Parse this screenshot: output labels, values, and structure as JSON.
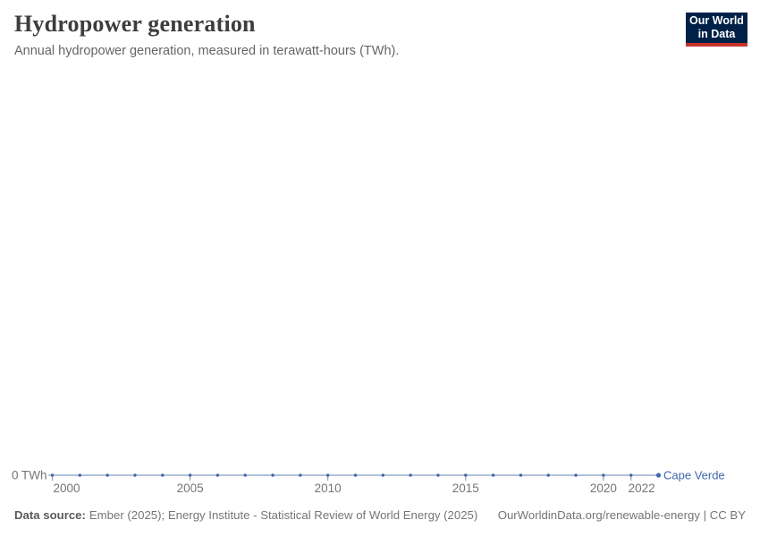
{
  "header": {
    "title": "Hydropower generation",
    "subtitle": "Annual hydropower generation, measured in terawatt-hours (TWh).",
    "logo": {
      "line1": "Our World",
      "line2": "in Data"
    }
  },
  "chart_data": {
    "type": "line",
    "title": "Hydropower generation",
    "subtitle": "Annual hydropower generation, measured in terawatt-hours (TWh).",
    "unit": "TWh",
    "x": [
      2000,
      2001,
      2002,
      2003,
      2004,
      2005,
      2006,
      2007,
      2008,
      2009,
      2010,
      2011,
      2012,
      2013,
      2014,
      2015,
      2016,
      2017,
      2018,
      2019,
      2020,
      2021,
      2022
    ],
    "series": [
      {
        "name": "Cape Verde",
        "color": "#4166ac",
        "values": [
          0,
          0,
          0,
          0,
          0,
          0,
          0,
          0,
          0,
          0,
          0,
          0,
          0,
          0,
          0,
          0,
          0,
          0,
          0,
          0,
          0,
          0,
          0
        ]
      }
    ],
    "xlim": [
      2000,
      2022
    ],
    "ylim": [
      0,
      0
    ],
    "x_tick_labels": [
      2000,
      2005,
      2010,
      2015,
      2020,
      2022
    ],
    "y_ticks": [
      {
        "value": 0,
        "label": "0 TWh"
      }
    ],
    "grid": false,
    "legend_position": "line-end-label"
  },
  "footer": {
    "source_label": "Data source:",
    "source_text": "Ember (2025); Energy Institute - Statistical Review of World Energy (2025)",
    "link_text": "OurWorldinData.org/renewable-energy | CC BY"
  },
  "colors": {
    "series_blue": "#4166ac",
    "logo_navy": "#002147",
    "logo_red": "#c5332b",
    "title_text": "#3d3d3d",
    "muted_text": "#757575",
    "tick_gray": "#9e9e9e"
  }
}
